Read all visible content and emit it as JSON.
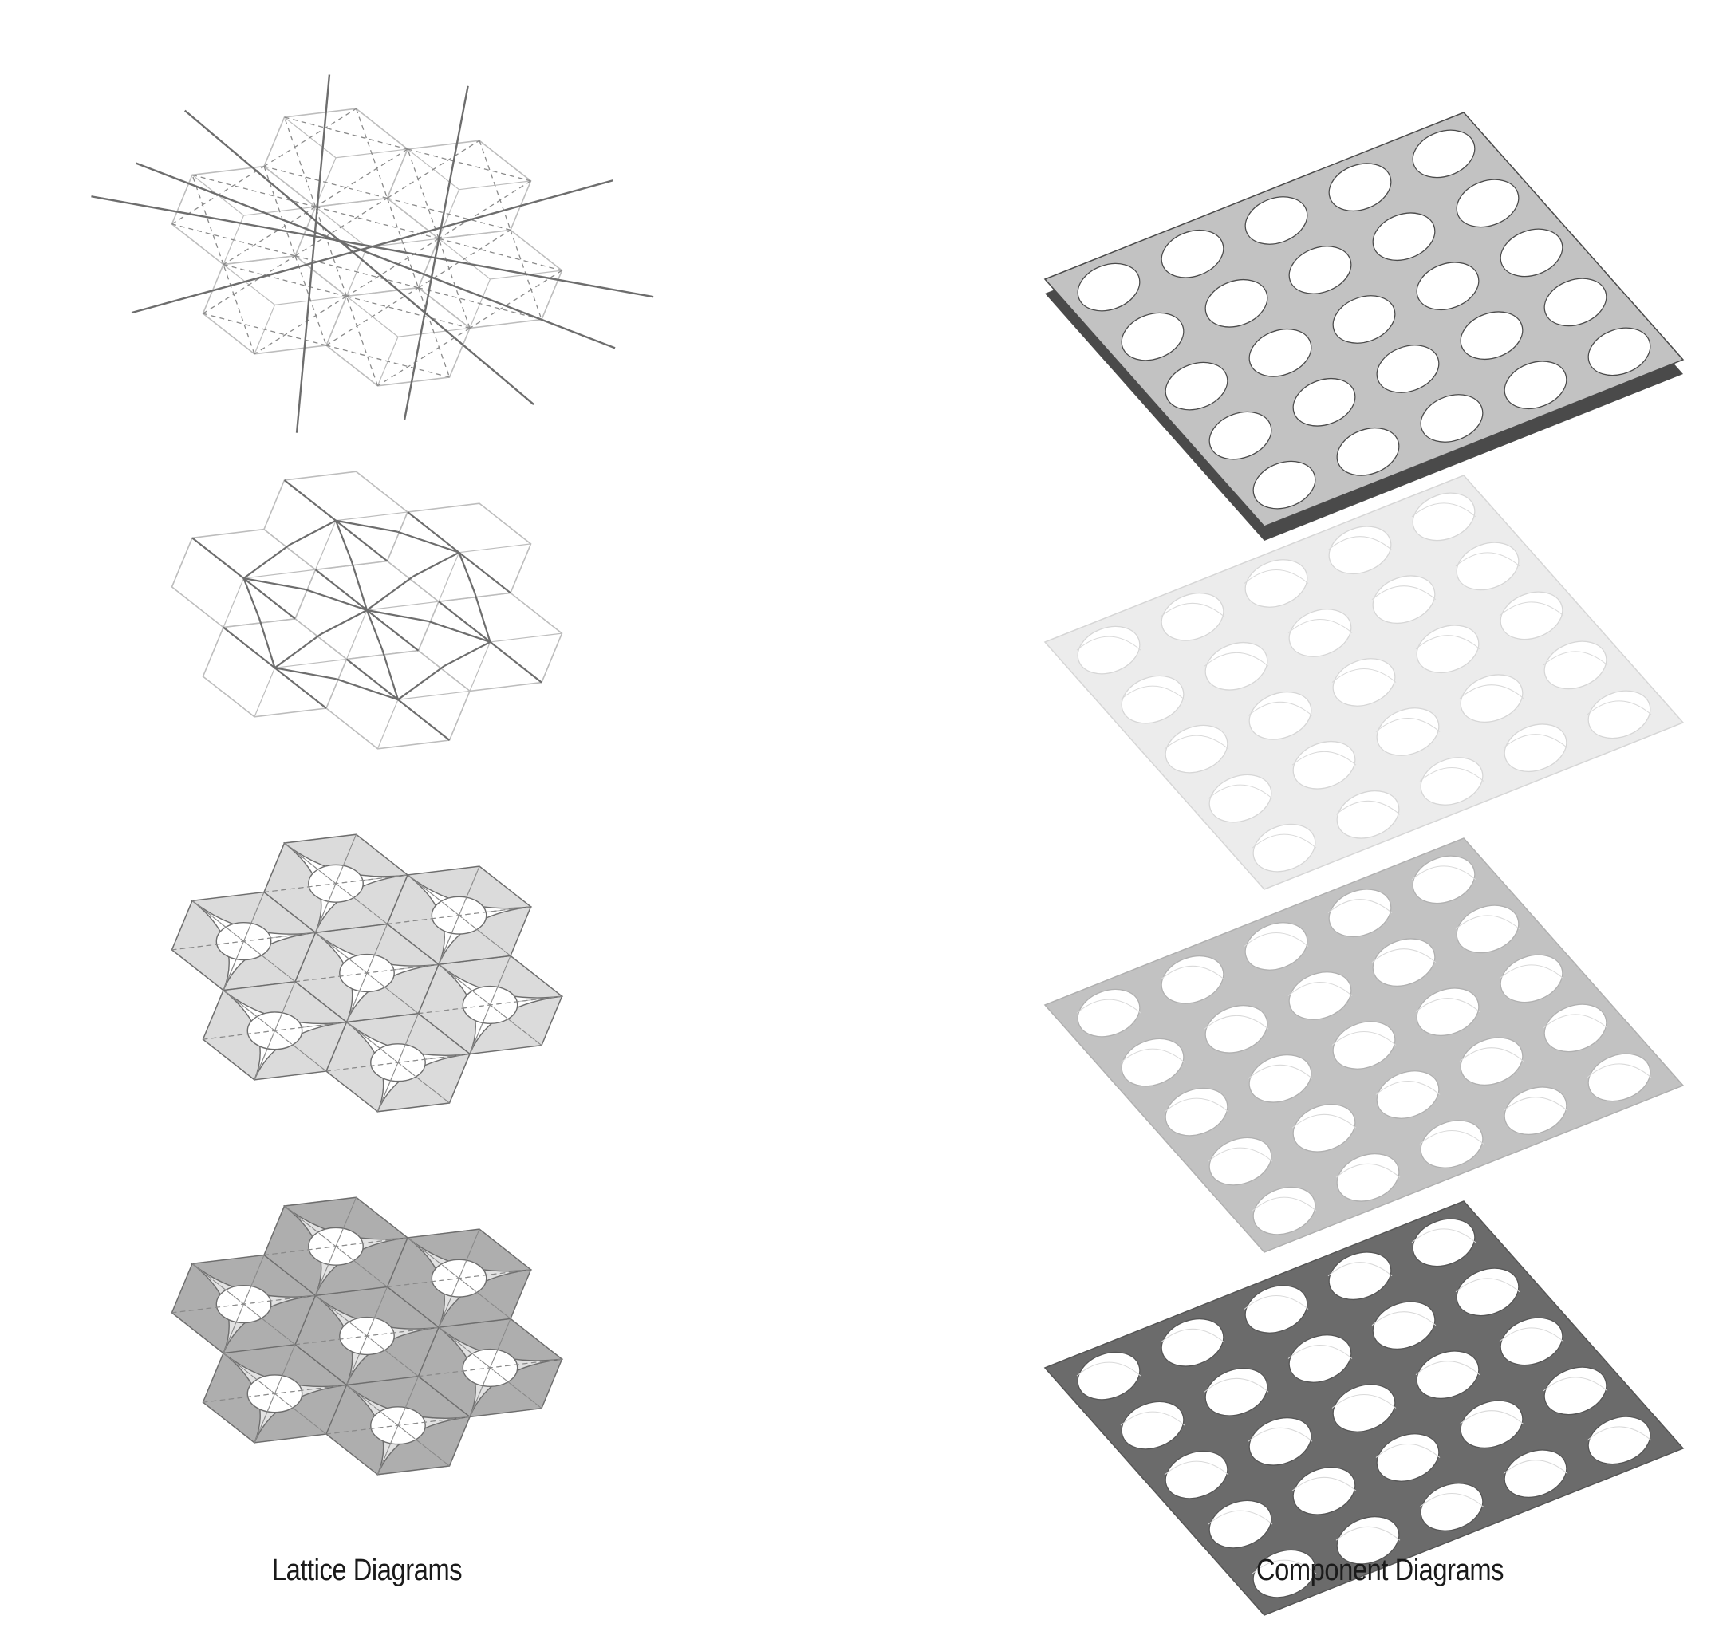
{
  "captions": {
    "left": "Lattice Diagrams",
    "right": "Component Diagrams"
  },
  "lattice_panels": [
    {
      "id": "lattice-1",
      "style": "triangulated"
    },
    {
      "id": "lattice-2",
      "style": "node-links"
    },
    {
      "id": "lattice-3",
      "style": "curved-bands"
    },
    {
      "id": "lattice-4",
      "style": "filled-bands"
    }
  ],
  "component_panels": [
    {
      "id": "component-1",
      "style": "extruded"
    },
    {
      "id": "component-2",
      "style": "faint"
    },
    {
      "id": "component-3",
      "style": "medium-gray"
    },
    {
      "id": "component-4",
      "style": "dark-gray"
    }
  ],
  "colors": {
    "outline": "#bdbdbd",
    "strut": "#6d6d6d",
    "dash": "#8a8a8a",
    "band_light": "#e2e2e2",
    "band_mid": "#cfcfcf",
    "band_dark": "#a9a9a9",
    "component_faint": "#ececec",
    "component_medium": "#c2c2c2",
    "component_dark": "#6b6b6b",
    "component_extrude": "#4a4a4a"
  }
}
